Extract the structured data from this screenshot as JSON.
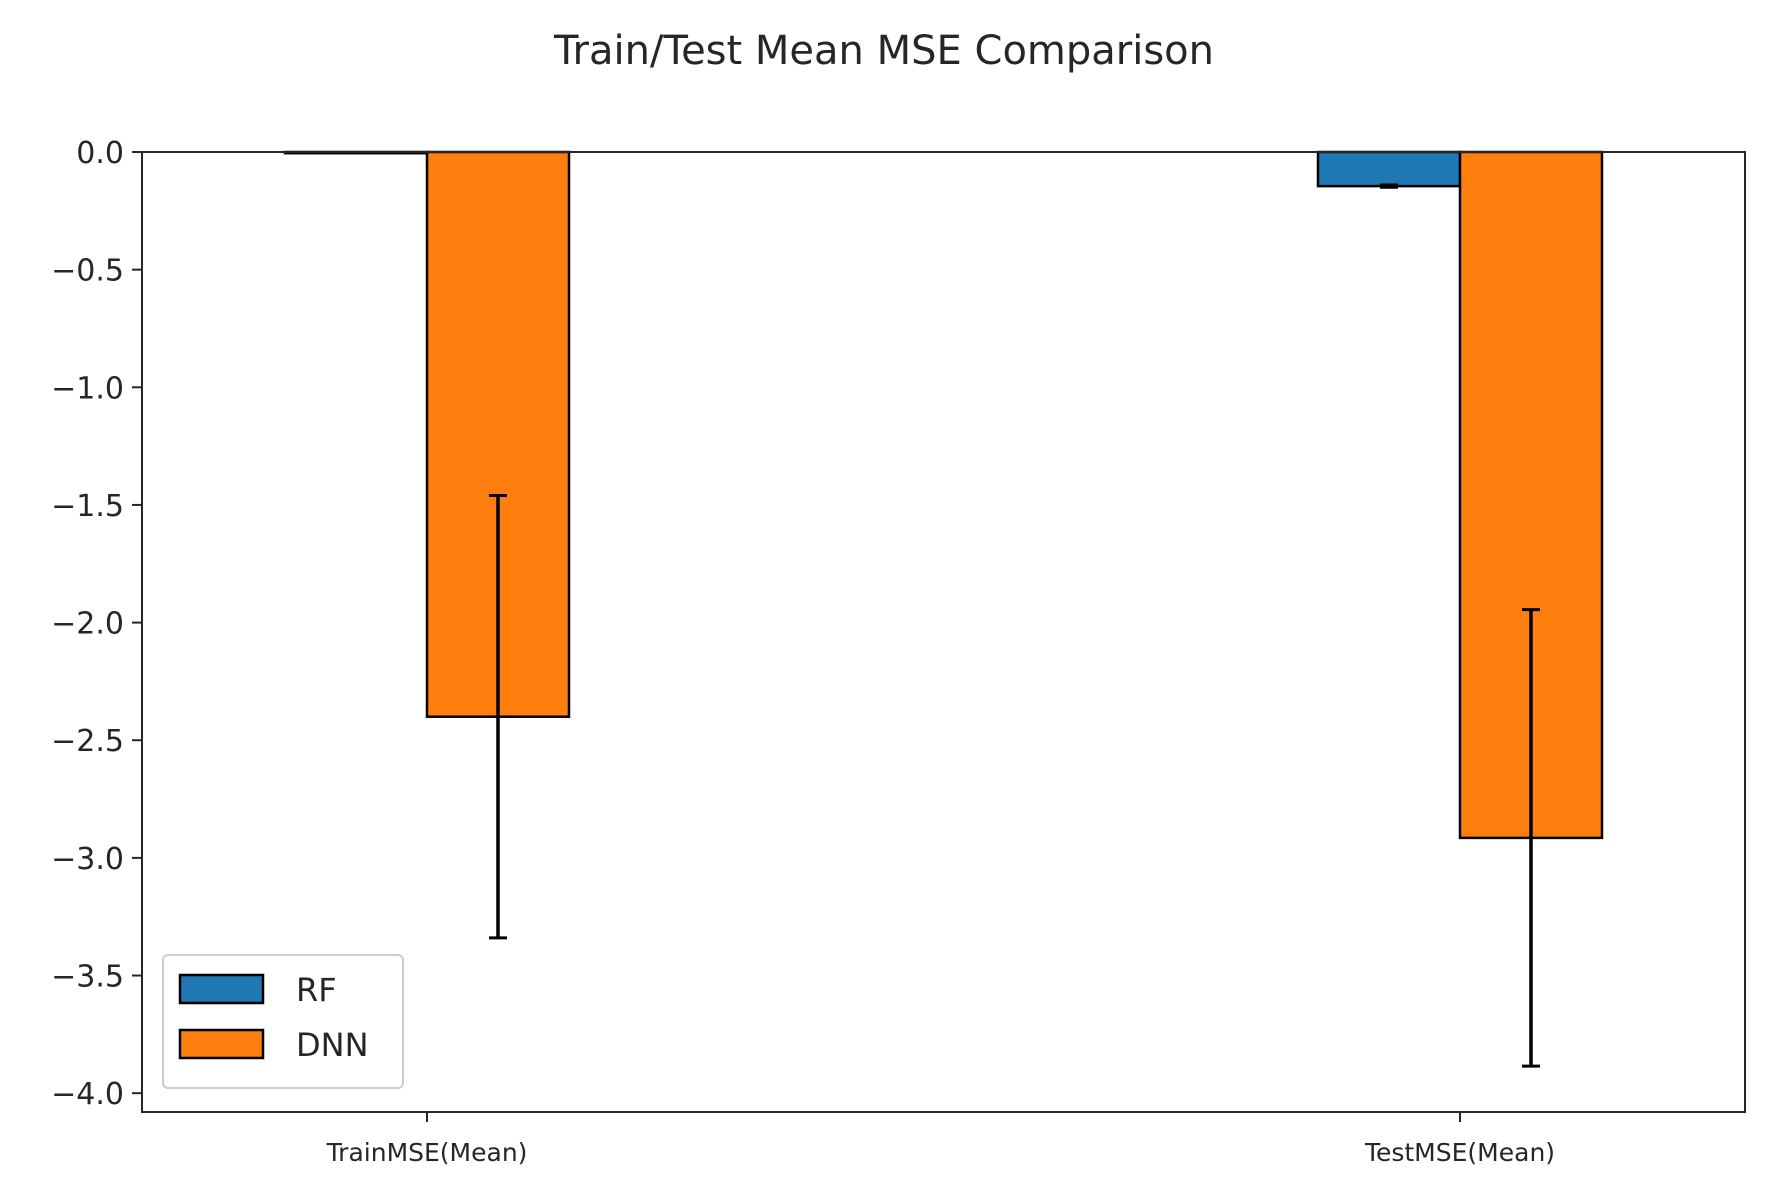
{
  "chart_data": {
    "type": "bar",
    "title": "Train/Test Mean MSE Comparison",
    "xlabel": "",
    "ylabel": "",
    "categories": [
      "TrainMSE(Mean)",
      "TestMSE(Mean)"
    ],
    "series": [
      {
        "name": "RF",
        "color": "#1f77b4",
        "values": [
          -0.005,
          -0.145
        ],
        "errors": [
          0.0,
          0.005
        ]
      },
      {
        "name": "DNN",
        "color": "#ff7f0e",
        "values": [
          -2.4,
          -2.915
        ],
        "errors": [
          0.94,
          0.97
        ]
      }
    ],
    "ylim": [
      -4.08,
      0.0
    ],
    "yticks": [
      0.0,
      -0.5,
      -1.0,
      -1.5,
      -2.0,
      -2.5,
      -3.0,
      -3.5,
      -4.0
    ],
    "ytick_labels": [
      "0.0",
      "−0.5",
      "−1.0",
      "−1.5",
      "−2.0",
      "−2.5",
      "−3.0",
      "−3.5",
      "−4.0"
    ],
    "grid": false,
    "legend": {
      "placement": "lower-left",
      "entries": [
        "RF",
        "DNN"
      ]
    }
  }
}
